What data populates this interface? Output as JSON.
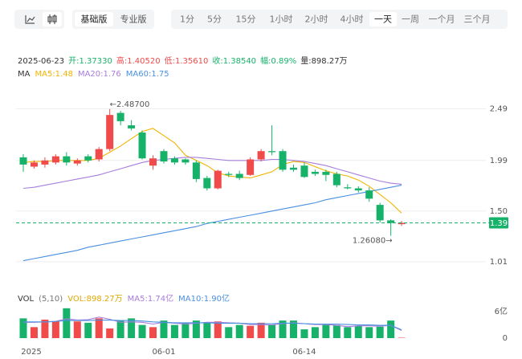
{
  "toolbar": {
    "versions": [
      {
        "label": "基础版",
        "selected": true
      },
      {
        "label": "专业版",
        "selected": false
      }
    ],
    "periods": [
      {
        "label": "1分",
        "selected": false
      },
      {
        "label": "5分",
        "selected": false
      },
      {
        "label": "15分",
        "selected": false
      },
      {
        "label": "1小时",
        "selected": false
      },
      {
        "label": "2小时",
        "selected": false
      },
      {
        "label": "4小时",
        "selected": false
      },
      {
        "label": "一天",
        "selected": true
      },
      {
        "label": "一周",
        "selected": false
      },
      {
        "label": "一个月",
        "selected": false
      },
      {
        "label": "三个月",
        "selected": false
      }
    ]
  },
  "chart_data": [
    {
      "type": "candlestick",
      "date": "2025-06-23",
      "info": [
        {
          "text": "开:1.37330",
          "color": "#17b26a"
        },
        {
          "text": "高:1.40520",
          "color": "#f04a4a"
        },
        {
          "text": "低:1.35610",
          "color": "#f04a4a"
        },
        {
          "text": "收:1.38540",
          "color": "#17b26a"
        },
        {
          "text": "幅:0.89%",
          "color": "#17b26a"
        },
        {
          "text": "量:898.27万",
          "color": "#333333"
        }
      ],
      "indicator_label": "MA",
      "open": [
        2.02,
        1.93,
        1.95,
        1.97,
        2.03,
        1.96,
        2.03,
        2.0,
        2.1,
        2.45,
        2.33,
        2.26,
        1.94,
        2.08,
        2.01,
        2.0,
        1.97,
        1.82,
        1.72,
        1.86,
        1.86,
        1.85,
        2.0,
        2.08,
        2.08,
        1.92,
        1.94,
        1.88,
        1.88,
        1.86,
        1.73,
        1.72,
        1.7,
        1.56,
        1.41,
        1.3733
      ],
      "high": [
        2.05,
        1.99,
        2.02,
        2.05,
        2.07,
        2.01,
        2.05,
        2.12,
        2.487,
        2.47,
        2.38,
        2.28,
        2.04,
        2.1,
        2.03,
        2.01,
        1.99,
        1.84,
        1.9,
        1.88,
        1.89,
        2.02,
        2.1,
        2.33,
        2.1,
        1.95,
        1.97,
        1.9,
        1.9,
        1.88,
        1.76,
        1.74,
        1.73,
        1.58,
        1.42,
        1.4052
      ],
      "low": [
        1.88,
        1.91,
        1.92,
        1.95,
        1.94,
        1.94,
        1.97,
        1.98,
        2.08,
        2.33,
        2.28,
        2.0,
        1.9,
        1.96,
        1.95,
        1.95,
        1.78,
        1.7,
        1.71,
        1.83,
        1.8,
        1.84,
        1.98,
        2.04,
        1.88,
        1.88,
        1.82,
        1.84,
        1.79,
        1.73,
        1.71,
        1.68,
        1.59,
        1.39,
        1.2608,
        1.3561
      ],
      "close": [
        1.95,
        1.97,
        1.99,
        2.03,
        1.97,
        1.99,
        1.99,
        2.1,
        2.43,
        2.37,
        2.3,
        2.01,
        2.01,
        1.98,
        1.97,
        1.97,
        1.81,
        1.72,
        1.89,
        1.85,
        1.82,
        2.0,
        2.08,
        2.07,
        1.9,
        1.9,
        1.83,
        1.86,
        1.85,
        1.75,
        1.72,
        1.7,
        1.62,
        1.41,
        1.385,
        1.3854
      ],
      "up_color": "#f04a4a",
      "down_color": "#17b26a",
      "series": [
        {
          "legend_label": "MA5:1.48",
          "color": "#f0b400",
          "values": [
            1.97,
            1.98,
            1.98,
            1.99,
            1.99,
            1.99,
            1.99,
            2.01,
            2.07,
            2.13,
            2.2,
            2.27,
            2.3,
            2.23,
            2.16,
            2.04,
            1.99,
            1.94,
            1.87,
            1.84,
            1.83,
            1.82,
            1.85,
            1.88,
            1.95,
            1.98,
            1.97,
            1.93,
            1.89,
            1.86,
            1.84,
            1.8,
            1.74,
            1.66,
            1.58,
            1.48
          ]
        },
        {
          "legend_label": "MA20:1.76",
          "color": "#a77ddc",
          "values": [
            1.72,
            1.73,
            1.75,
            1.77,
            1.79,
            1.81,
            1.83,
            1.85,
            1.88,
            1.91,
            1.94,
            1.97,
            1.99,
            2.0,
            2.01,
            2.02,
            2.02,
            2.01,
            2.0,
            1.99,
            1.99,
            1.99,
            1.99,
            2.0,
            2.0,
            1.99,
            1.98,
            1.96,
            1.94,
            1.91,
            1.88,
            1.85,
            1.82,
            1.79,
            1.77,
            1.76
          ]
        },
        {
          "legend_label": "MA60:1.75",
          "color": "#4a8fe0",
          "values": [
            1.02,
            1.04,
            1.06,
            1.08,
            1.1,
            1.12,
            1.15,
            1.17,
            1.19,
            1.21,
            1.23,
            1.25,
            1.27,
            1.29,
            1.31,
            1.33,
            1.35,
            1.38,
            1.4,
            1.42,
            1.44,
            1.46,
            1.48,
            1.5,
            1.52,
            1.54,
            1.56,
            1.58,
            1.61,
            1.63,
            1.65,
            1.67,
            1.69,
            1.71,
            1.73,
            1.75
          ]
        }
      ],
      "ylim": [
        0.9,
        2.61
      ],
      "yticks": [
        2.49,
        1.99,
        {
          "value": 1.5,
          "label": "1.50"
        },
        1.01
      ],
      "grid": true,
      "max_label": "←2.48700",
      "min_label": "1.26080→",
      "last_price": {
        "value": 1.3854,
        "label": "1.39"
      }
    },
    {
      "type": "bar",
      "indicator_label": "VOL",
      "params": "(5,10)",
      "categories": [
        "2025",
        null,
        null,
        null,
        null,
        null,
        null,
        null,
        null,
        null,
        null,
        null,
        null,
        "06-01",
        null,
        null,
        null,
        null,
        null,
        null,
        null,
        null,
        null,
        null,
        null,
        null,
        "06-14",
        null,
        null,
        null,
        null,
        null,
        null,
        null,
        null,
        null
      ],
      "series": [
        {
          "legend_label": "VOL:898.27万",
          "color": "#e0a800",
          "values": [
            4.5,
            2.5,
            4.2,
            3.8,
            6.8,
            3.8,
            3.5,
            4.5,
            2.2,
            4.0,
            4.5,
            3.0,
            2.5,
            4.0,
            3.0,
            3.5,
            4.0,
            3.5,
            3.8,
            2.5,
            3.0,
            2.8,
            3.5,
            3.0,
            4.0,
            4.0,
            2.0,
            2.5,
            3.0,
            3.0,
            2.5,
            2.8,
            2.5,
            2.6,
            4.0,
            0.0898
          ]
        },
        {
          "legend_label": "MA5:1.74亿",
          "color": "#a77ddc",
          "values": [
            3.6,
            3.6,
            3.7,
            3.8,
            4.4,
            4.1,
            4.2,
            4.8,
            4.3,
            3.6,
            3.7,
            3.6,
            3.2,
            3.6,
            3.4,
            3.2,
            3.4,
            3.6,
            3.6,
            3.5,
            3.4,
            3.1,
            3.1,
            3.0,
            3.3,
            3.5,
            3.3,
            3.1,
            3.1,
            2.9,
            2.6,
            2.8,
            2.8,
            2.7,
            2.9,
            1.74
          ]
        },
        {
          "legend_label": "MA10:1.90亿",
          "color": "#4a8fe0",
          "values": [
            3.7,
            3.7,
            3.7,
            3.8,
            4.0,
            4.0,
            4.0,
            4.1,
            4.1,
            4.0,
            4.0,
            3.9,
            3.7,
            3.6,
            3.5,
            3.5,
            3.5,
            3.5,
            3.4,
            3.4,
            3.4,
            3.3,
            3.3,
            3.3,
            3.4,
            3.4,
            3.3,
            3.2,
            3.2,
            3.2,
            3.1,
            3.0,
            3.0,
            2.9,
            2.9,
            1.9
          ]
        }
      ],
      "ylim": [
        0,
        7.5
      ],
      "yticks": [
        {
          "value": 6,
          "label": "6亿"
        },
        0
      ]
    }
  ]
}
